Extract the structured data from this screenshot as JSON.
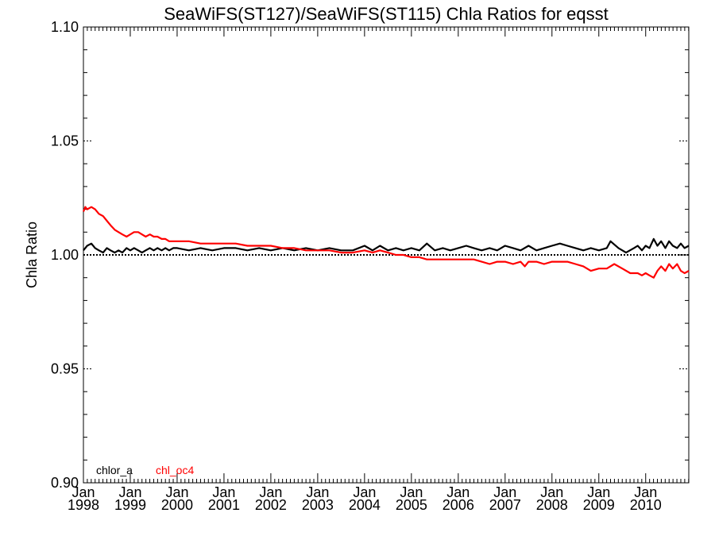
{
  "chart_data": {
    "type": "line",
    "title": "SeaWiFS(ST127)/SeaWiFS(ST115)  Chla Ratios for eqsst",
    "xlabel": "",
    "ylabel": "Chla Ratio",
    "xlim": [
      1998.0,
      2010.92
    ],
    "ylim": [
      0.9,
      1.1
    ],
    "yticks": [
      "0.90",
      "0.95",
      "1.00",
      "1.05",
      "1.10"
    ],
    "xticks": [
      {
        "x": 1998,
        "line1": "Jan",
        "line2": "1998"
      },
      {
        "x": 1999,
        "line1": "Jan",
        "line2": "1999"
      },
      {
        "x": 2000,
        "line1": "Jan",
        "line2": "2000"
      },
      {
        "x": 2001,
        "line1": "Jan",
        "line2": "2001"
      },
      {
        "x": 2002,
        "line1": "Jan",
        "line2": "2002"
      },
      {
        "x": 2003,
        "line1": "Jan",
        "line2": "2003"
      },
      {
        "x": 2004,
        "line1": "Jan",
        "line2": "2004"
      },
      {
        "x": 2005,
        "line1": "Jan",
        "line2": "2005"
      },
      {
        "x": 2006,
        "line1": "Jan",
        "line2": "2006"
      },
      {
        "x": 2007,
        "line1": "Jan",
        "line2": "2007"
      },
      {
        "x": 2008,
        "line1": "Jan",
        "line2": "2008"
      },
      {
        "x": 2009,
        "line1": "Jan",
        "line2": "2009"
      },
      {
        "x": 2010,
        "line1": "Jan",
        "line2": "2010"
      }
    ],
    "reference_line": {
      "y": 1.0,
      "style": "dotted",
      "color": "#000000"
    },
    "legend_placement": "bottom-left",
    "series": [
      {
        "name": "chlor_a",
        "color": "#000000",
        "points": [
          [
            1998.0,
            1.002
          ],
          [
            1998.08,
            1.004
          ],
          [
            1998.17,
            1.005
          ],
          [
            1998.25,
            1.003
          ],
          [
            1998.33,
            1.002
          ],
          [
            1998.42,
            1.001
          ],
          [
            1998.5,
            1.003
          ],
          [
            1998.58,
            1.002
          ],
          [
            1998.67,
            1.001
          ],
          [
            1998.75,
            1.002
          ],
          [
            1998.83,
            1.001
          ],
          [
            1998.92,
            1.003
          ],
          [
            1999.0,
            1.002
          ],
          [
            1999.08,
            1.003
          ],
          [
            1999.17,
            1.002
          ],
          [
            1999.25,
            1.001
          ],
          [
            1999.33,
            1.002
          ],
          [
            1999.42,
            1.003
          ],
          [
            1999.5,
            1.002
          ],
          [
            1999.58,
            1.003
          ],
          [
            1999.67,
            1.002
          ],
          [
            1999.75,
            1.003
          ],
          [
            1999.83,
            1.002
          ],
          [
            1999.92,
            1.003
          ],
          [
            2000.0,
            1.003
          ],
          [
            2000.25,
            1.002
          ],
          [
            2000.5,
            1.003
          ],
          [
            2000.75,
            1.002
          ],
          [
            2001.0,
            1.003
          ],
          [
            2001.25,
            1.003
          ],
          [
            2001.5,
            1.002
          ],
          [
            2001.75,
            1.003
          ],
          [
            2002.0,
            1.002
          ],
          [
            2002.25,
            1.003
          ],
          [
            2002.5,
            1.002
          ],
          [
            2002.75,
            1.003
          ],
          [
            2003.0,
            1.002
          ],
          [
            2003.25,
            1.003
          ],
          [
            2003.5,
            1.002
          ],
          [
            2003.75,
            1.002
          ],
          [
            2004.0,
            1.004
          ],
          [
            2004.17,
            1.002
          ],
          [
            2004.33,
            1.004
          ],
          [
            2004.5,
            1.002
          ],
          [
            2004.67,
            1.003
          ],
          [
            2004.83,
            1.002
          ],
          [
            2005.0,
            1.003
          ],
          [
            2005.17,
            1.002
          ],
          [
            2005.33,
            1.005
          ],
          [
            2005.5,
            1.002
          ],
          [
            2005.67,
            1.003
          ],
          [
            2005.83,
            1.002
          ],
          [
            2006.0,
            1.003
          ],
          [
            2006.17,
            1.004
          ],
          [
            2006.33,
            1.003
          ],
          [
            2006.5,
            1.002
          ],
          [
            2006.67,
            1.003
          ],
          [
            2006.83,
            1.002
          ],
          [
            2007.0,
            1.004
          ],
          [
            2007.17,
            1.003
          ],
          [
            2007.33,
            1.002
          ],
          [
            2007.5,
            1.004
          ],
          [
            2007.67,
            1.002
          ],
          [
            2007.83,
            1.003
          ],
          [
            2008.0,
            1.004
          ],
          [
            2008.17,
            1.005
          ],
          [
            2008.33,
            1.004
          ],
          [
            2008.5,
            1.003
          ],
          [
            2008.67,
            1.002
          ],
          [
            2008.83,
            1.003
          ],
          [
            2009.0,
            1.002
          ],
          [
            2009.17,
            1.003
          ],
          [
            2009.25,
            1.006
          ],
          [
            2009.42,
            1.003
          ],
          [
            2009.58,
            1.001
          ],
          [
            2009.75,
            1.003
          ],
          [
            2009.83,
            1.004
          ],
          [
            2009.92,
            1.002
          ],
          [
            2010.0,
            1.004
          ],
          [
            2010.08,
            1.003
          ],
          [
            2010.17,
            1.007
          ],
          [
            2010.25,
            1.004
          ],
          [
            2010.33,
            1.006
          ],
          [
            2010.42,
            1.003
          ],
          [
            2010.5,
            1.006
          ],
          [
            2010.58,
            1.004
          ],
          [
            2010.67,
            1.003
          ],
          [
            2010.75,
            1.005
          ],
          [
            2010.83,
            1.003
          ],
          [
            2010.92,
            1.004
          ]
        ]
      },
      {
        "name": "chl_oc4",
        "color": "#ff0000",
        "points": [
          [
            1998.0,
            1.019
          ],
          [
            1998.04,
            1.021
          ],
          [
            1998.08,
            1.02
          ],
          [
            1998.17,
            1.021
          ],
          [
            1998.25,
            1.02
          ],
          [
            1998.33,
            1.018
          ],
          [
            1998.42,
            1.017
          ],
          [
            1998.5,
            1.015
          ],
          [
            1998.58,
            1.013
          ],
          [
            1998.67,
            1.011
          ],
          [
            1998.75,
            1.01
          ],
          [
            1998.83,
            1.009
          ],
          [
            1998.92,
            1.008
          ],
          [
            1999.0,
            1.009
          ],
          [
            1999.08,
            1.01
          ],
          [
            1999.17,
            1.01
          ],
          [
            1999.25,
            1.009
          ],
          [
            1999.33,
            1.008
          ],
          [
            1999.42,
            1.009
          ],
          [
            1999.5,
            1.008
          ],
          [
            1999.58,
            1.008
          ],
          [
            1999.67,
            1.007
          ],
          [
            1999.75,
            1.007
          ],
          [
            1999.83,
            1.006
          ],
          [
            2000.0,
            1.006
          ],
          [
            2000.25,
            1.006
          ],
          [
            2000.5,
            1.005
          ],
          [
            2000.75,
            1.005
          ],
          [
            2001.0,
            1.005
          ],
          [
            2001.25,
            1.005
          ],
          [
            2001.5,
            1.004
          ],
          [
            2001.75,
            1.004
          ],
          [
            2002.0,
            1.004
          ],
          [
            2002.25,
            1.003
          ],
          [
            2002.5,
            1.003
          ],
          [
            2002.75,
            1.002
          ],
          [
            2003.0,
            1.002
          ],
          [
            2003.25,
            1.002
          ],
          [
            2003.5,
            1.001
          ],
          [
            2003.75,
            1.001
          ],
          [
            2004.0,
            1.002
          ],
          [
            2004.17,
            1.001
          ],
          [
            2004.33,
            1.002
          ],
          [
            2004.5,
            1.001
          ],
          [
            2004.67,
            1.0
          ],
          [
            2004.83,
            1.0
          ],
          [
            2005.0,
            0.999
          ],
          [
            2005.17,
            0.999
          ],
          [
            2005.33,
            0.998
          ],
          [
            2005.5,
            0.998
          ],
          [
            2005.67,
            0.998
          ],
          [
            2005.83,
            0.998
          ],
          [
            2006.0,
            0.998
          ],
          [
            2006.17,
            0.998
          ],
          [
            2006.33,
            0.998
          ],
          [
            2006.5,
            0.997
          ],
          [
            2006.67,
            0.996
          ],
          [
            2006.83,
            0.997
          ],
          [
            2007.0,
            0.997
          ],
          [
            2007.17,
            0.996
          ],
          [
            2007.33,
            0.997
          ],
          [
            2007.42,
            0.995
          ],
          [
            2007.5,
            0.997
          ],
          [
            2007.67,
            0.997
          ],
          [
            2007.83,
            0.996
          ],
          [
            2008.0,
            0.997
          ],
          [
            2008.17,
            0.997
          ],
          [
            2008.33,
            0.997
          ],
          [
            2008.5,
            0.996
          ],
          [
            2008.67,
            0.995
          ],
          [
            2008.83,
            0.993
          ],
          [
            2009.0,
            0.994
          ],
          [
            2009.17,
            0.994
          ],
          [
            2009.33,
            0.996
          ],
          [
            2009.5,
            0.994
          ],
          [
            2009.67,
            0.992
          ],
          [
            2009.83,
            0.992
          ],
          [
            2009.92,
            0.991
          ],
          [
            2010.0,
            0.992
          ],
          [
            2010.08,
            0.991
          ],
          [
            2010.17,
            0.99
          ],
          [
            2010.25,
            0.993
          ],
          [
            2010.33,
            0.995
          ],
          [
            2010.42,
            0.993
          ],
          [
            2010.5,
            0.996
          ],
          [
            2010.58,
            0.994
          ],
          [
            2010.67,
            0.996
          ],
          [
            2010.75,
            0.993
          ],
          [
            2010.83,
            0.992
          ],
          [
            2010.92,
            0.993
          ]
        ]
      }
    ]
  }
}
